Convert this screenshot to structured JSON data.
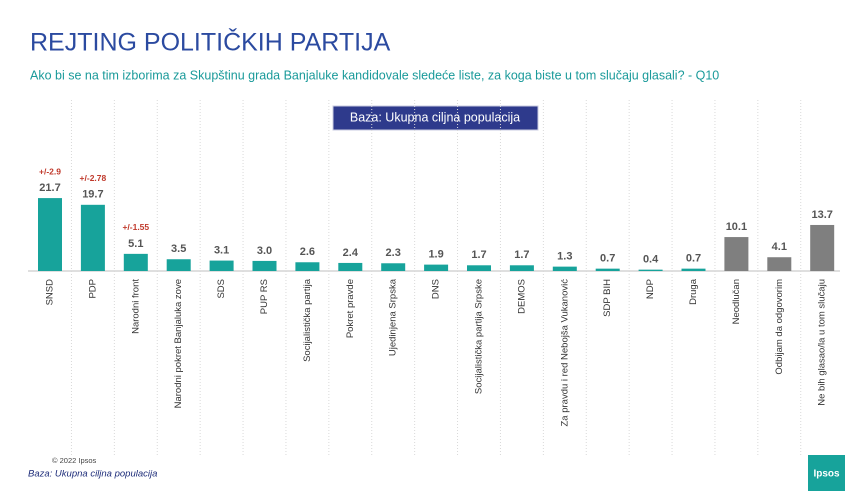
{
  "chart_data": {
    "type": "bar",
    "title": "REJTING POLITIČKIH PARTIJA",
    "subtitle": "Ako bi se na tim izborima za Skupštinu grada Banjaluke kandidovale sledeće liste, za koga biste u tom slučaju glasali? - Q10",
    "base_note": "Baza: Ukupna ciljna populacija",
    "copyright": "© 2022 Ipsos",
    "footer": "Baza: Ukupna ciljna populacija",
    "logo": "Ipsos",
    "categories": [
      "SNSD",
      "PDP",
      "Narodni front",
      "Narodni pokret Banjaluka zove",
      "SDS",
      "PUP RS",
      "Socijalistička partija",
      "Pokret pravde",
      "Ujedinjena Srpska",
      "DNS",
      "Socijalistička partija Srpske",
      "DEMOS",
      "Za pravdu i red Nebojša Vukanović",
      "SDP BIH",
      "NDP",
      "Druga",
      "Neodlučan",
      "Odbijam da odgovorim",
      "Ne bih glasao/la u tom slučaju"
    ],
    "values": [
      21.7,
      19.7,
      5.1,
      3.5,
      3.1,
      3.0,
      2.6,
      2.4,
      2.3,
      1.9,
      1.7,
      1.7,
      1.3,
      0.7,
      0.4,
      0.7,
      10.1,
      4.1,
      13.7
    ],
    "value_labels": [
      "21.7",
      "19.7",
      "5.1",
      "3.5",
      "3.1",
      "3.0",
      "2.6",
      "2.4",
      "2.3",
      "1.9",
      "1.7",
      "1.7",
      "1.3",
      "0.7",
      "0.4",
      "0.7",
      "10.1",
      "4.1",
      "13.7"
    ],
    "error_labels": [
      "+/-2.9",
      "+/-2.78",
      "+/-1.55",
      null,
      null,
      null,
      null,
      null,
      null,
      null,
      null,
      null,
      null,
      null,
      null,
      null,
      null,
      null,
      null
    ],
    "colors": [
      "#17a39b",
      "#17a39b",
      "#17a39b",
      "#17a39b",
      "#17a39b",
      "#17a39b",
      "#17a39b",
      "#17a39b",
      "#17a39b",
      "#17a39b",
      "#17a39b",
      "#17a39b",
      "#17a39b",
      "#17a39b",
      "#17a39b",
      "#17a39b",
      "#7f7f7f",
      "#7f7f7f",
      "#7f7f7f"
    ]
  }
}
